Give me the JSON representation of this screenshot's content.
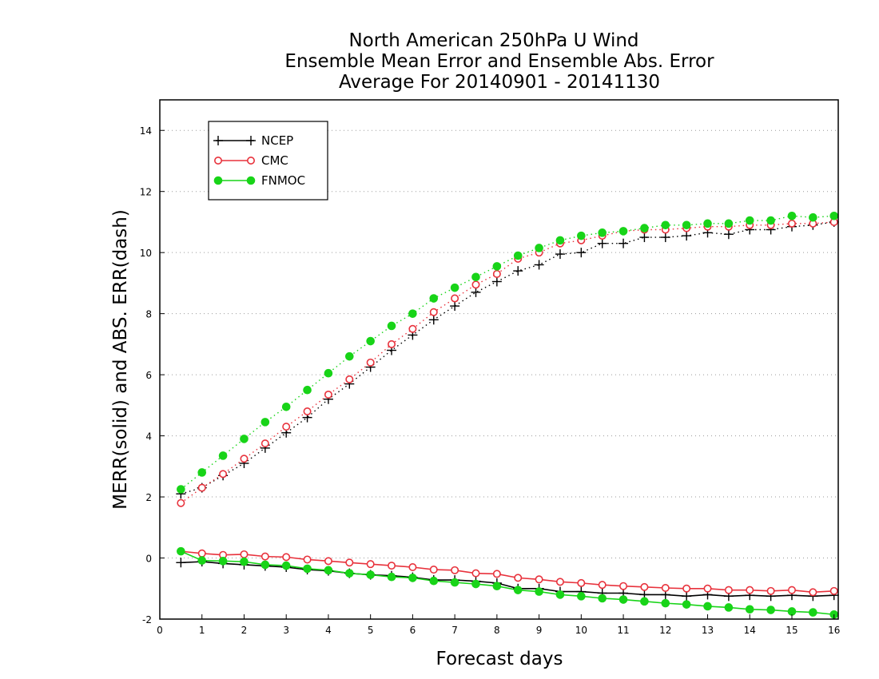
{
  "chart_data": {
    "type": "line",
    "title": [
      "North American 250hPa U Wind",
      "Ensemble Mean Error and Ensemble Abs. Error",
      "Average For 20140901 - 20141130"
    ],
    "xlabel": "Forecast days",
    "ylabel": "MERR(solid) and ABS. ERR(dash)",
    "xlim": [
      0,
      16.1
    ],
    "ylim": [
      -2,
      15
    ],
    "xticks": [
      0,
      1,
      2,
      3,
      4,
      5,
      6,
      7,
      8,
      9,
      10,
      11,
      12,
      13,
      14,
      15,
      16
    ],
    "yticks": [
      -2,
      0,
      2,
      4,
      6,
      8,
      10,
      12,
      14
    ],
    "grid": "horizontal dotted",
    "legend_position": "top-left",
    "x": [
      0.5,
      1,
      1.5,
      2,
      2.5,
      3,
      3.5,
      4,
      4.5,
      5,
      5.5,
      6,
      6.5,
      7,
      7.5,
      8,
      8.5,
      9,
      9.5,
      10,
      10.5,
      11,
      11.5,
      12,
      12.5,
      13,
      13.5,
      14,
      14.5,
      15,
      15.5,
      16
    ],
    "series": [
      {
        "name": "NCEP",
        "marker": "plus",
        "color": "#000000",
        "abs_error": [
          2.1,
          2.3,
          2.7,
          3.1,
          3.6,
          4.1,
          4.6,
          5.2,
          5.7,
          6.25,
          6.8,
          7.3,
          7.8,
          8.25,
          8.7,
          9.05,
          9.4,
          9.6,
          9.95,
          10.0,
          10.3,
          10.3,
          10.5,
          10.5,
          10.55,
          10.65,
          10.6,
          10.75,
          10.75,
          10.85,
          10.9,
          11.0
        ],
        "mean_error": [
          -0.15,
          -0.12,
          -0.18,
          -0.22,
          -0.26,
          -0.3,
          -0.38,
          -0.42,
          -0.5,
          -0.55,
          -0.58,
          -0.63,
          -0.72,
          -0.72,
          -0.76,
          -0.82,
          -1.0,
          -1.0,
          -1.1,
          -1.1,
          -1.15,
          -1.15,
          -1.2,
          -1.2,
          -1.25,
          -1.2,
          -1.25,
          -1.22,
          -1.25,
          -1.22,
          -1.25,
          -1.22
        ]
      },
      {
        "name": "CMC",
        "marker": "open-circle",
        "color": "#e8323c",
        "abs_error": [
          1.8,
          2.3,
          2.75,
          3.25,
          3.75,
          4.3,
          4.8,
          5.35,
          5.85,
          6.4,
          7.0,
          7.5,
          8.05,
          8.5,
          8.95,
          9.3,
          9.8,
          10.0,
          10.3,
          10.4,
          10.55,
          10.7,
          10.75,
          10.75,
          10.8,
          10.85,
          10.85,
          10.9,
          10.9,
          10.95,
          10.95,
          11.0
        ],
        "mean_error": [
          0.22,
          0.15,
          0.1,
          0.12,
          0.05,
          0.03,
          -0.05,
          -0.1,
          -0.15,
          -0.2,
          -0.25,
          -0.3,
          -0.38,
          -0.4,
          -0.5,
          -0.52,
          -0.65,
          -0.7,
          -0.78,
          -0.82,
          -0.88,
          -0.92,
          -0.95,
          -0.98,
          -1.0,
          -1.0,
          -1.05,
          -1.05,
          -1.08,
          -1.05,
          -1.12,
          -1.08
        ]
      },
      {
        "name": "FNMOC",
        "marker": "filled-circle",
        "color": "#18d418",
        "abs_error": [
          2.25,
          2.8,
          3.35,
          3.9,
          4.45,
          4.95,
          5.5,
          6.05,
          6.6,
          7.1,
          7.6,
          8.0,
          8.5,
          8.85,
          9.2,
          9.55,
          9.9,
          10.15,
          10.4,
          10.55,
          10.65,
          10.7,
          10.8,
          10.9,
          10.9,
          10.95,
          10.95,
          11.05,
          11.05,
          11.2,
          11.15,
          11.2
        ],
        "mean_error": [
          0.22,
          -0.08,
          -0.1,
          -0.12,
          -0.22,
          -0.25,
          -0.35,
          -0.4,
          -0.5,
          -0.55,
          -0.62,
          -0.65,
          -0.75,
          -0.8,
          -0.85,
          -0.92,
          -1.05,
          -1.1,
          -1.2,
          -1.25,
          -1.32,
          -1.36,
          -1.42,
          -1.48,
          -1.52,
          -1.58,
          -1.62,
          -1.68,
          -1.7,
          -1.75,
          -1.78,
          -1.85
        ]
      }
    ]
  }
}
